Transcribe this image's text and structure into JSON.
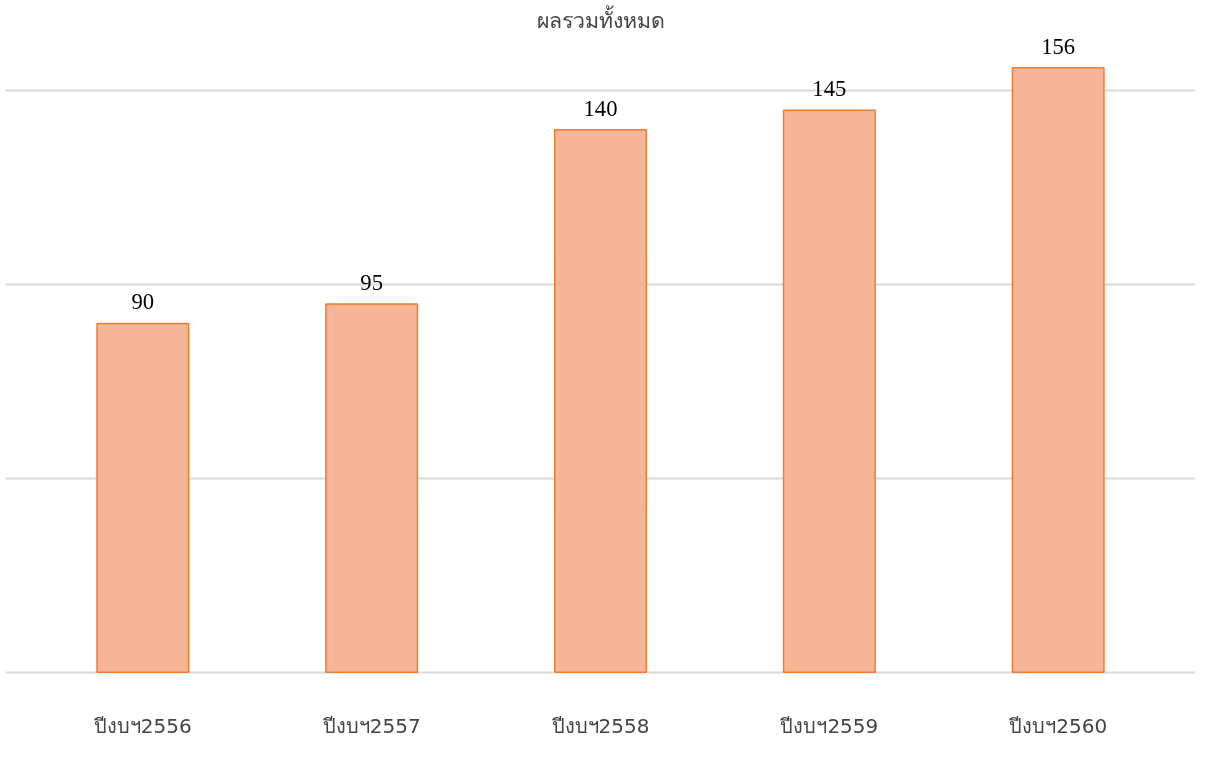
{
  "chart_data": {
    "type": "bar",
    "title": "ผลรวมทั้งหมด",
    "categories": [
      "ปีงบฯ2556",
      "ปีงบฯ2557",
      "ปีงบฯ2558",
      "ปีงบฯ2559",
      "ปีงบฯ2560"
    ],
    "values": [
      90,
      95,
      140,
      145,
      156
    ],
    "color": "#f7b597",
    "grid": "y",
    "data_labels": true,
    "tick_labels": "x"
  }
}
